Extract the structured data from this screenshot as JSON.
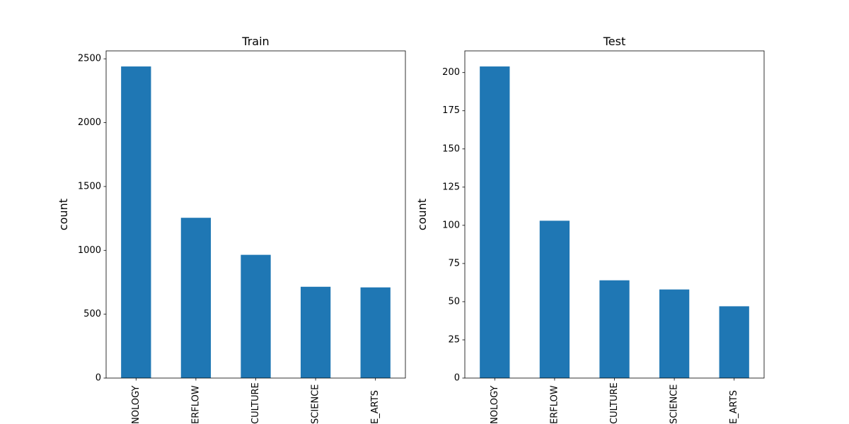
{
  "chart_data": [
    {
      "type": "bar",
      "title": "Train",
      "xlabel": "",
      "ylabel": "count",
      "categories": [
        "NOLOGY",
        "ERFLOW",
        "CULTURE",
        "SCIENCE",
        "E_ARTS"
      ],
      "values": [
        2440,
        1255,
        965,
        715,
        710
      ],
      "ylim": [
        0,
        2562
      ],
      "yticks": [
        0,
        500,
        1000,
        1500,
        2000,
        2500
      ],
      "color": "#1f77b4",
      "grid": false
    },
    {
      "type": "bar",
      "title": "Test",
      "xlabel": "",
      "ylabel": "count",
      "categories": [
        "NOLOGY",
        "ERFLOW",
        "CULTURE",
        "SCIENCE",
        "E_ARTS"
      ],
      "values": [
        204,
        103,
        64,
        58,
        47
      ],
      "ylim": [
        0,
        214.2
      ],
      "yticks": [
        0,
        25,
        50,
        75,
        100,
        125,
        150,
        175,
        200
      ],
      "color": "#1f77b4",
      "grid": false
    }
  ]
}
